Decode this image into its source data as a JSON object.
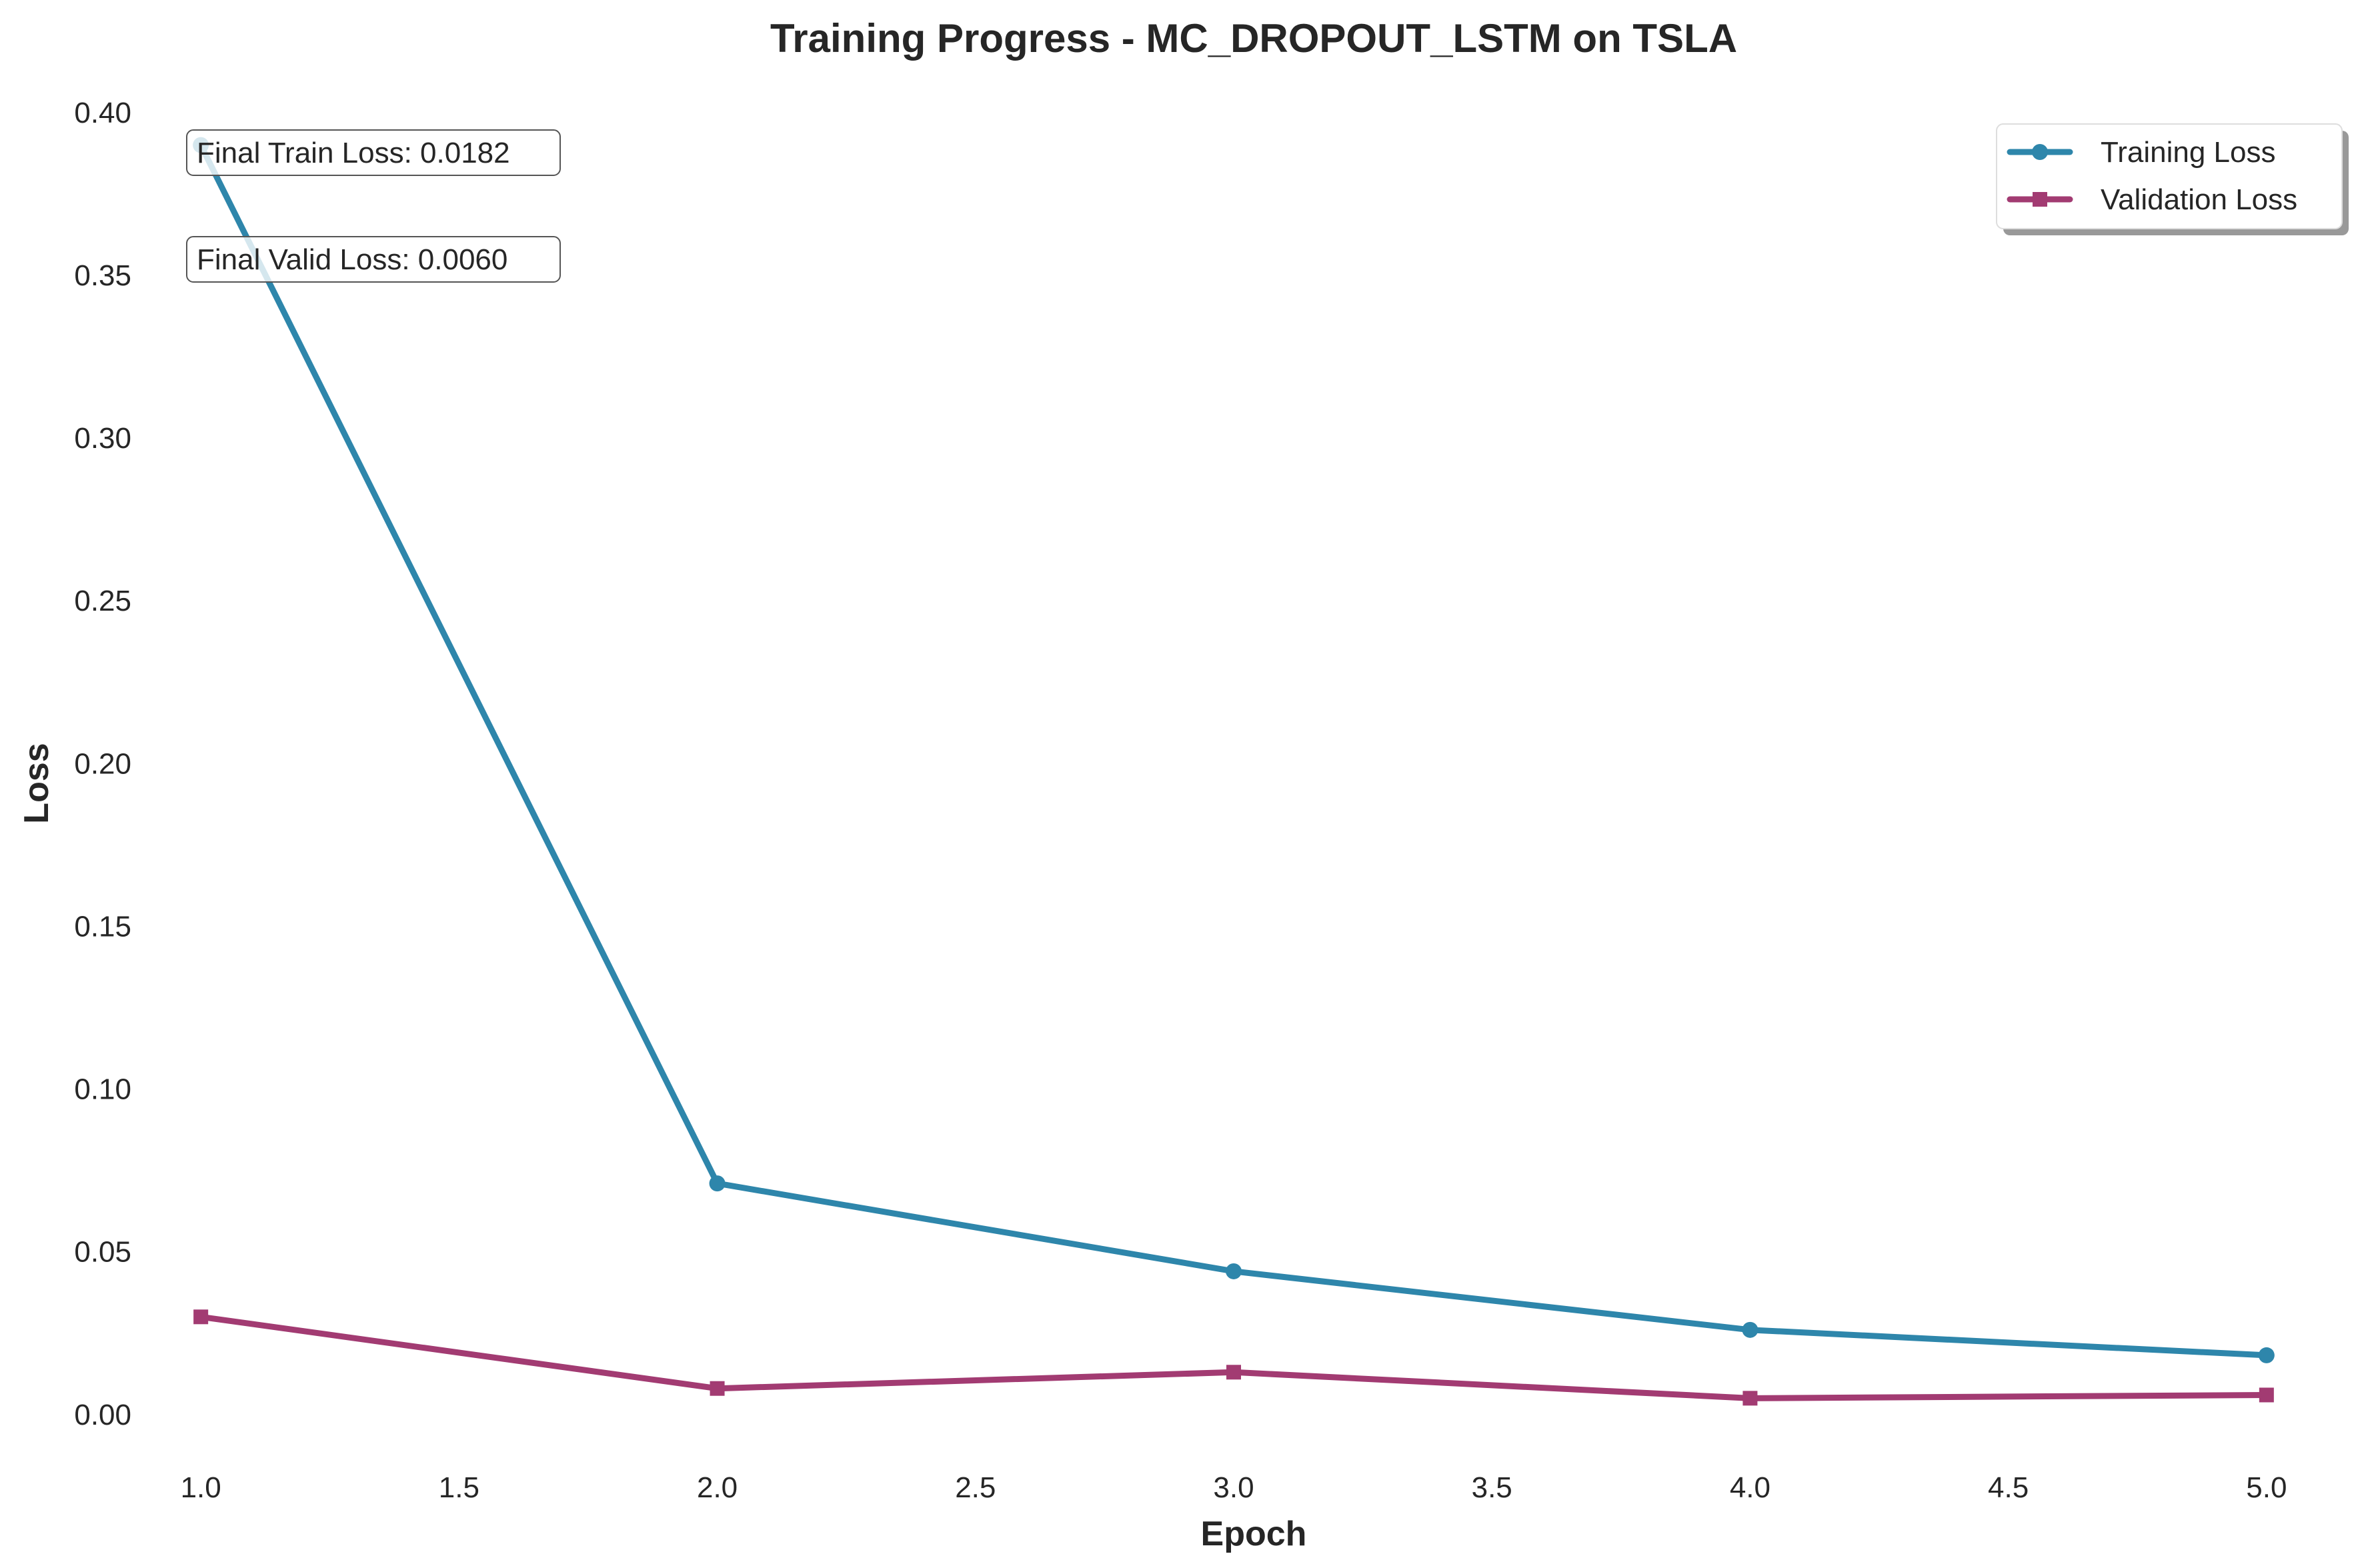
{
  "chart_data": {
    "type": "line",
    "title": "Training Progress - MC_DROPOUT_LSTM on TSLA",
    "xlabel": "Epoch",
    "ylabel": "Loss",
    "x": [
      1,
      2,
      3,
      4,
      5
    ],
    "xlim": [
      0.85,
      5.15
    ],
    "ylim": [
      -0.015,
      0.41
    ],
    "xticks": [
      1.0,
      1.5,
      2.0,
      2.5,
      3.0,
      3.5,
      4.0,
      4.5,
      5.0
    ],
    "xtick_labels": [
      "1.0",
      "1.5",
      "2.0",
      "2.5",
      "3.0",
      "3.5",
      "4.0",
      "4.5",
      "5.0"
    ],
    "yticks": [
      0.0,
      0.05,
      0.1,
      0.15,
      0.2,
      0.25,
      0.3,
      0.35,
      0.4
    ],
    "ytick_labels": [
      "0.00",
      "0.05",
      "0.10",
      "0.15",
      "0.20",
      "0.25",
      "0.30",
      "0.35",
      "0.40"
    ],
    "grid": false,
    "legend_position": "top-right",
    "series": [
      {
        "name": "Training Loss",
        "values": [
          0.39,
          0.071,
          0.044,
          0.026,
          0.0182
        ],
        "color": "#2e86ab",
        "marker": "circle"
      },
      {
        "name": "Validation Loss",
        "values": [
          0.03,
          0.008,
          0.013,
          0.005,
          0.006
        ],
        "color": "#a23b72",
        "marker": "square"
      }
    ],
    "annotations": [
      {
        "text": "Final Train Loss: 0.0182"
      },
      {
        "text": "Final Valid Loss: 0.0060"
      }
    ]
  }
}
